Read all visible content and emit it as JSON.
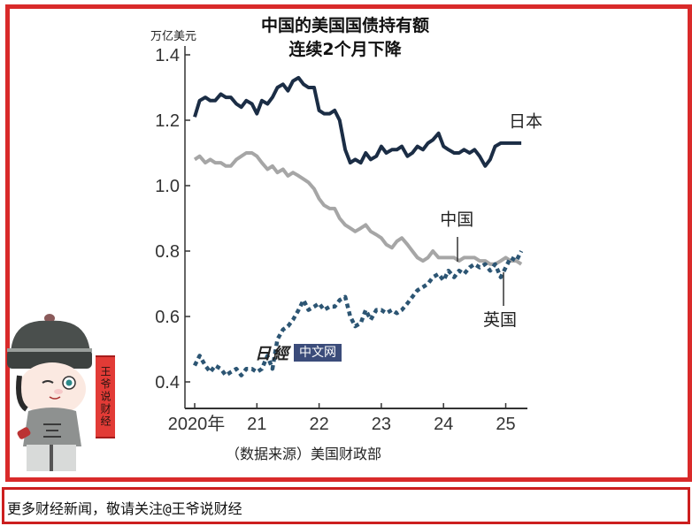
{
  "header": {
    "title_line1": "中国的美国国债持有额",
    "title_line2": "连续2个月下降",
    "unit": "万亿美元"
  },
  "source": "（数据来源）美国财政部",
  "watermark": {
    "logo": "日經",
    "box": "中文网"
  },
  "mascot": {
    "banner_text": "王爷说财经"
  },
  "footer": {
    "text": "更多财经新闻，敬请关注@王爷说财经"
  },
  "colors": {
    "frame": "#d92a2a",
    "japan": "#1b2d45",
    "china": "#a6a6a6",
    "uk": "#2c5573",
    "axis": "#333333"
  },
  "chart_data": {
    "type": "line",
    "title": "中国的美国国债持有额 连续2个月下降",
    "xlabel": "",
    "ylabel": "万亿美元",
    "ylim": [
      0.4,
      1.4
    ],
    "yticks": [
      0.4,
      0.6,
      0.8,
      1.0,
      1.2,
      1.4
    ],
    "ytick_labels": [
      "0.4",
      "0.6",
      "0.8",
      "1.0",
      "1.2",
      "1.4"
    ],
    "xlim": [
      2020.0,
      2025.45
    ],
    "xticks": [
      2020,
      2021,
      2022,
      2023,
      2024,
      2025
    ],
    "xtick_labels": [
      "2020年",
      "21",
      "22",
      "23",
      "24",
      "25"
    ],
    "grid": false,
    "legend": "inline labels",
    "source_note": "（数据来源）美国财政部",
    "series": [
      {
        "name": "日本",
        "style": "solid",
        "color": "#1b2d45",
        "x": [
          2020.0,
          2020.08,
          2020.17,
          2020.25,
          2020.33,
          2020.42,
          2020.5,
          2020.58,
          2020.67,
          2020.75,
          2020.83,
          2020.92,
          2021.0,
          2021.08,
          2021.17,
          2021.25,
          2021.33,
          2021.42,
          2021.5,
          2021.58,
          2021.67,
          2021.75,
          2021.83,
          2021.92,
          2022.0,
          2022.08,
          2022.17,
          2022.25,
          2022.33,
          2022.42,
          2022.5,
          2022.58,
          2022.67,
          2022.75,
          2022.83,
          2022.92,
          2023.0,
          2023.08,
          2023.17,
          2023.25,
          2023.33,
          2023.42,
          2023.5,
          2023.58,
          2023.67,
          2023.75,
          2023.83,
          2023.92,
          2024.0,
          2024.08,
          2024.17,
          2024.25,
          2024.33,
          2024.42,
          2024.5,
          2024.58,
          2024.67,
          2024.75,
          2024.83,
          2024.92,
          2025.0,
          2025.08,
          2025.17,
          2025.25
        ],
        "values": [
          1.21,
          1.26,
          1.27,
          1.26,
          1.26,
          1.28,
          1.27,
          1.27,
          1.25,
          1.24,
          1.26,
          1.25,
          1.22,
          1.26,
          1.25,
          1.27,
          1.3,
          1.31,
          1.29,
          1.32,
          1.33,
          1.31,
          1.3,
          1.3,
          1.23,
          1.22,
          1.22,
          1.23,
          1.2,
          1.11,
          1.07,
          1.08,
          1.07,
          1.1,
          1.08,
          1.09,
          1.12,
          1.1,
          1.11,
          1.11,
          1.12,
          1.09,
          1.1,
          1.12,
          1.11,
          1.13,
          1.14,
          1.16,
          1.12,
          1.11,
          1.1,
          1.1,
          1.11,
          1.1,
          1.11,
          1.09,
          1.06,
          1.08,
          1.12,
          1.13,
          1.13,
          1.13,
          1.13,
          1.13
        ],
        "label_position": {
          "x": 2025.05,
          "y": 1.18
        }
      },
      {
        "name": "中国",
        "style": "solid",
        "color": "#a6a6a6",
        "x": [
          2020.0,
          2020.08,
          2020.17,
          2020.25,
          2020.33,
          2020.42,
          2020.5,
          2020.58,
          2020.67,
          2020.75,
          2020.83,
          2020.92,
          2021.0,
          2021.08,
          2021.17,
          2021.25,
          2021.33,
          2021.42,
          2021.5,
          2021.58,
          2021.67,
          2021.75,
          2021.83,
          2021.92,
          2022.0,
          2022.08,
          2022.17,
          2022.25,
          2022.33,
          2022.42,
          2022.5,
          2022.58,
          2022.67,
          2022.75,
          2022.83,
          2022.92,
          2023.0,
          2023.08,
          2023.17,
          2023.25,
          2023.33,
          2023.42,
          2023.5,
          2023.58,
          2023.67,
          2023.75,
          2023.83,
          2023.92,
          2024.0,
          2024.08,
          2024.17,
          2024.25,
          2024.33,
          2024.42,
          2024.5,
          2024.58,
          2024.67,
          2024.75,
          2024.83,
          2024.92,
          2025.0,
          2025.08,
          2025.17,
          2025.25
        ],
        "values": [
          1.08,
          1.09,
          1.07,
          1.08,
          1.07,
          1.07,
          1.06,
          1.06,
          1.08,
          1.09,
          1.1,
          1.1,
          1.09,
          1.07,
          1.05,
          1.06,
          1.04,
          1.05,
          1.03,
          1.04,
          1.03,
          1.02,
          1.01,
          0.99,
          0.96,
          0.94,
          0.93,
          0.93,
          0.9,
          0.88,
          0.87,
          0.86,
          0.87,
          0.88,
          0.86,
          0.85,
          0.84,
          0.82,
          0.81,
          0.83,
          0.84,
          0.82,
          0.8,
          0.78,
          0.77,
          0.78,
          0.8,
          0.78,
          0.78,
          0.78,
          0.78,
          0.77,
          0.78,
          0.78,
          0.78,
          0.77,
          0.77,
          0.76,
          0.76,
          0.77,
          0.78,
          0.77,
          0.77,
          0.76
        ],
        "label_position": {
          "x": 2024.2,
          "y": 0.88
        }
      },
      {
        "name": "英国",
        "style": "dashed",
        "color": "#2c5573",
        "x": [
          2020.0,
          2020.08,
          2020.17,
          2020.25,
          2020.33,
          2020.42,
          2020.5,
          2020.58,
          2020.67,
          2020.75,
          2020.83,
          2020.92,
          2021.0,
          2021.08,
          2021.17,
          2021.25,
          2021.33,
          2021.42,
          2021.5,
          2021.58,
          2021.67,
          2021.75,
          2021.83,
          2021.92,
          2022.0,
          2022.08,
          2022.17,
          2022.25,
          2022.33,
          2022.42,
          2022.5,
          2022.58,
          2022.67,
          2022.75,
          2022.83,
          2022.92,
          2023.0,
          2023.08,
          2023.17,
          2023.25,
          2023.33,
          2023.42,
          2023.5,
          2023.58,
          2023.67,
          2023.75,
          2023.83,
          2023.92,
          2024.0,
          2024.08,
          2024.17,
          2024.25,
          2024.33,
          2024.42,
          2024.5,
          2024.58,
          2024.67,
          2024.75,
          2024.83,
          2024.92,
          2025.0,
          2025.08,
          2025.17,
          2025.25
        ],
        "values": [
          0.45,
          0.48,
          0.45,
          0.43,
          0.45,
          0.44,
          0.42,
          0.43,
          0.44,
          0.42,
          0.44,
          0.44,
          0.43,
          0.44,
          0.48,
          0.44,
          0.53,
          0.56,
          0.57,
          0.59,
          0.62,
          0.65,
          0.62,
          0.63,
          0.64,
          0.62,
          0.63,
          0.63,
          0.65,
          0.66,
          0.6,
          0.57,
          0.58,
          0.62,
          0.59,
          0.62,
          0.62,
          0.61,
          0.62,
          0.61,
          0.62,
          0.64,
          0.66,
          0.68,
          0.69,
          0.7,
          0.72,
          0.73,
          0.71,
          0.74,
          0.72,
          0.74,
          0.73,
          0.75,
          0.76,
          0.75,
          0.76,
          0.74,
          0.76,
          0.72,
          0.75,
          0.78,
          0.77,
          0.8
        ],
        "label_position": {
          "x": 2024.95,
          "y": 0.58
        }
      }
    ]
  }
}
